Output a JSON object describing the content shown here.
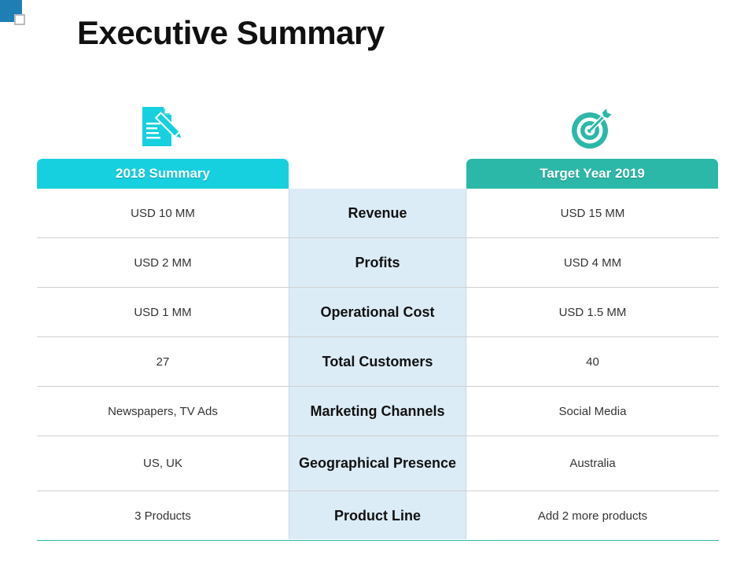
{
  "title": "Executive Summary",
  "colors": {
    "accent_left": "#17d0df",
    "accent_right": "#2cb8a8",
    "middle_column": "#dcecf7",
    "corner": "#1f7fb5"
  },
  "icons": {
    "left": "document-pencil-icon",
    "right": "target-arrow-icon"
  },
  "headers": {
    "left": "2018 Summary",
    "right": "Target Year 2019"
  },
  "rows": [
    {
      "metric": "Revenue",
      "summary_2018": "USD 10 MM",
      "target_2019": "USD 15 MM"
    },
    {
      "metric": "Profits",
      "summary_2018": "USD 2 MM",
      "target_2019": "USD 4 MM"
    },
    {
      "metric": "Operational Cost",
      "summary_2018": "USD 1 MM",
      "target_2019": "USD 1.5 MM"
    },
    {
      "metric": "Total Customers",
      "summary_2018": "27",
      "target_2019": "40"
    },
    {
      "metric": "Marketing Channels",
      "summary_2018": "Newspapers, TV Ads",
      "target_2019": "Social Media"
    },
    {
      "metric": "Geographical Presence",
      "summary_2018": "US, UK",
      "target_2019": "Australia"
    },
    {
      "metric": "Product Line",
      "summary_2018": "3 Products",
      "target_2019": "Add 2 more products"
    }
  ]
}
